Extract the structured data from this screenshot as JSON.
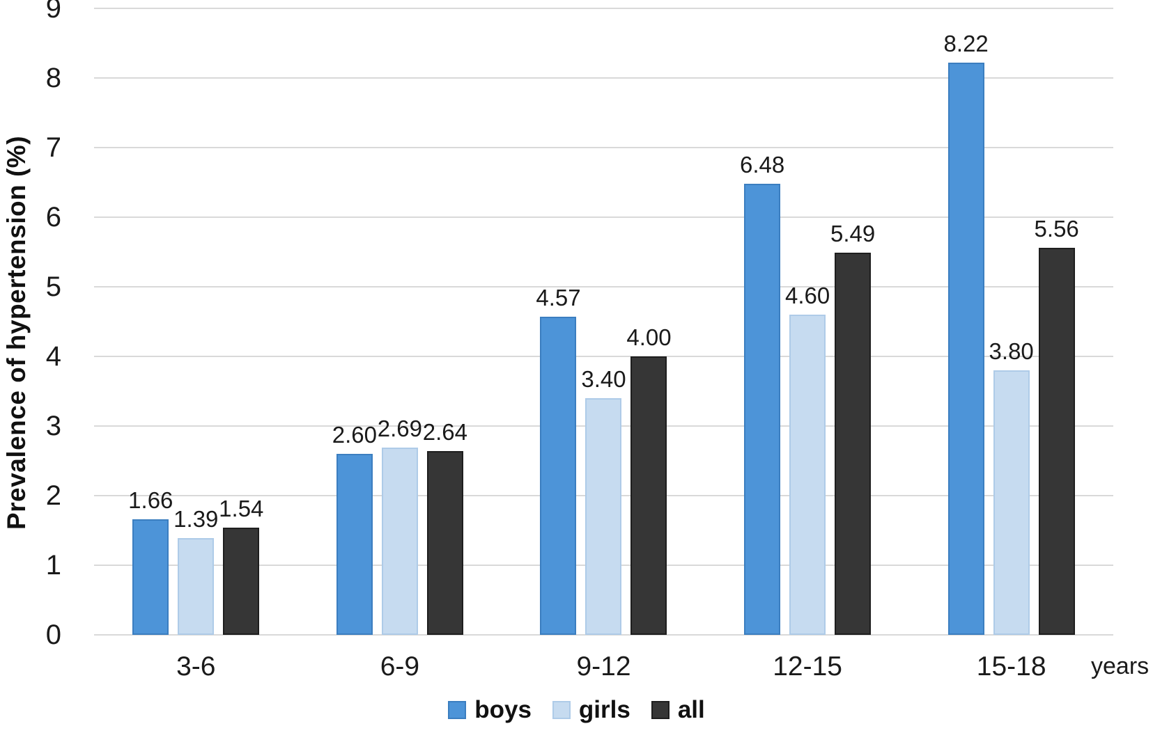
{
  "chart_data": {
    "type": "bar",
    "title": "",
    "ylabel": "Prevalence of hypertension (%)",
    "xlabel": "years",
    "categories": [
      "3-6",
      "6-9",
      "9-12",
      "12-15",
      "15-18"
    ],
    "series": [
      {
        "name": "boys",
        "color": "#4D94D8",
        "border_color": "#3B7EC0",
        "values": [
          1.66,
          2.6,
          4.57,
          6.48,
          8.22
        ]
      },
      {
        "name": "girls",
        "color": "#C6DBF0",
        "border_color": "#AECBE8",
        "values": [
          1.39,
          2.69,
          3.4,
          4.6,
          3.8
        ]
      },
      {
        "name": "all",
        "color": "#363636",
        "border_color": "#1E1E1E",
        "values": [
          1.54,
          2.64,
          4.0,
          5.49,
          5.56
        ]
      }
    ],
    "ylim": [
      0,
      9
    ],
    "yticks": [
      0,
      1,
      2,
      3,
      4,
      5,
      6,
      7,
      8,
      9
    ],
    "grid": true,
    "gridline_color": "#D9D9D9",
    "legend_position": "bottom",
    "value_labels": "2 decimal places above each bar"
  }
}
